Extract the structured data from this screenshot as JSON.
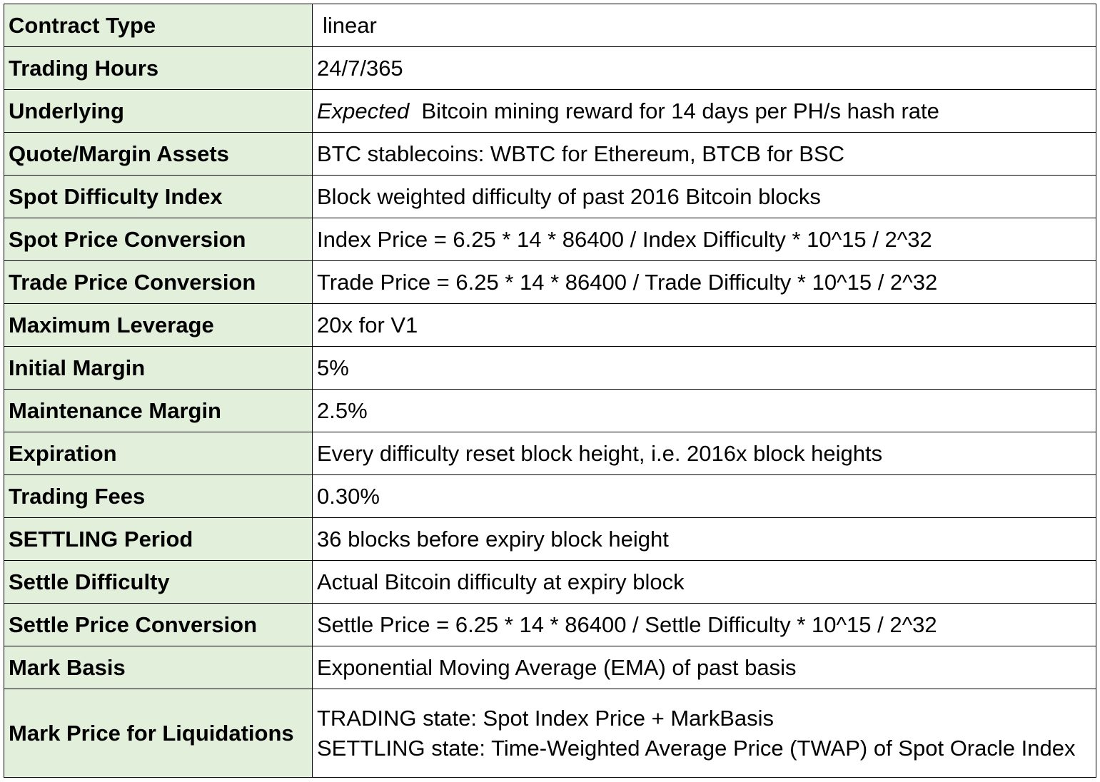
{
  "table": {
    "rows": [
      {
        "label": "Contract Type",
        "value": "linear"
      },
      {
        "label": "Trading Hours",
        "value": "24/7/365"
      },
      {
        "label": "Underlying",
        "value_emphasis": "Expected",
        "value": "Bitcoin mining reward for 14 days per PH/s hash rate"
      },
      {
        "label": "Quote/Margin Assets",
        "value": "BTC stablecoins: WBTC for Ethereum, BTCB for BSC"
      },
      {
        "label": "Spot Difficulty Index",
        "value": "Block weighted difficulty of past 2016 Bitcoin blocks"
      },
      {
        "label": "Spot Price Conversion",
        "value": "Index Price = 6.25 * 14 * 86400 / Index Difficulty * 10^15 / 2^32"
      },
      {
        "label": "Trade Price Conversion",
        "value": "Trade Price = 6.25 * 14 * 86400 / Trade Difficulty * 10^15 / 2^32"
      },
      {
        "label": "Maximum Leverage",
        "value": "20x for V1"
      },
      {
        "label": "Initial Margin",
        "value": "5%"
      },
      {
        "label": "Maintenance Margin",
        "value": "2.5%"
      },
      {
        "label": "Expiration",
        "value": "Every difficulty reset block height, i.e. 2016x block heights"
      },
      {
        "label": "Trading Fees",
        "value": "0.30%"
      },
      {
        "label": "SETTLING Period",
        "value": "36 blocks before expiry block height"
      },
      {
        "label": "Settle Difficulty",
        "value": "Actual Bitcoin difficulty at expiry block"
      },
      {
        "label": "Settle Price Conversion",
        "value": "Settle Price = 6.25 * 14 * 86400 / Settle Difficulty * 10^15 / 2^32"
      },
      {
        "label": "Mark Basis",
        "value": "Exponential Moving Average (EMA) of past basis"
      },
      {
        "label": "Mark Price for Liquidations",
        "value_line1": "TRADING state: Spot Index Price + MarkBasis",
        "value_line2": "SETTLING state:  Time-Weighted Average Price (TWAP) of Spot Oracle Index"
      }
    ]
  },
  "colors": {
    "label_background": "#e2efda",
    "border": "#000000"
  }
}
